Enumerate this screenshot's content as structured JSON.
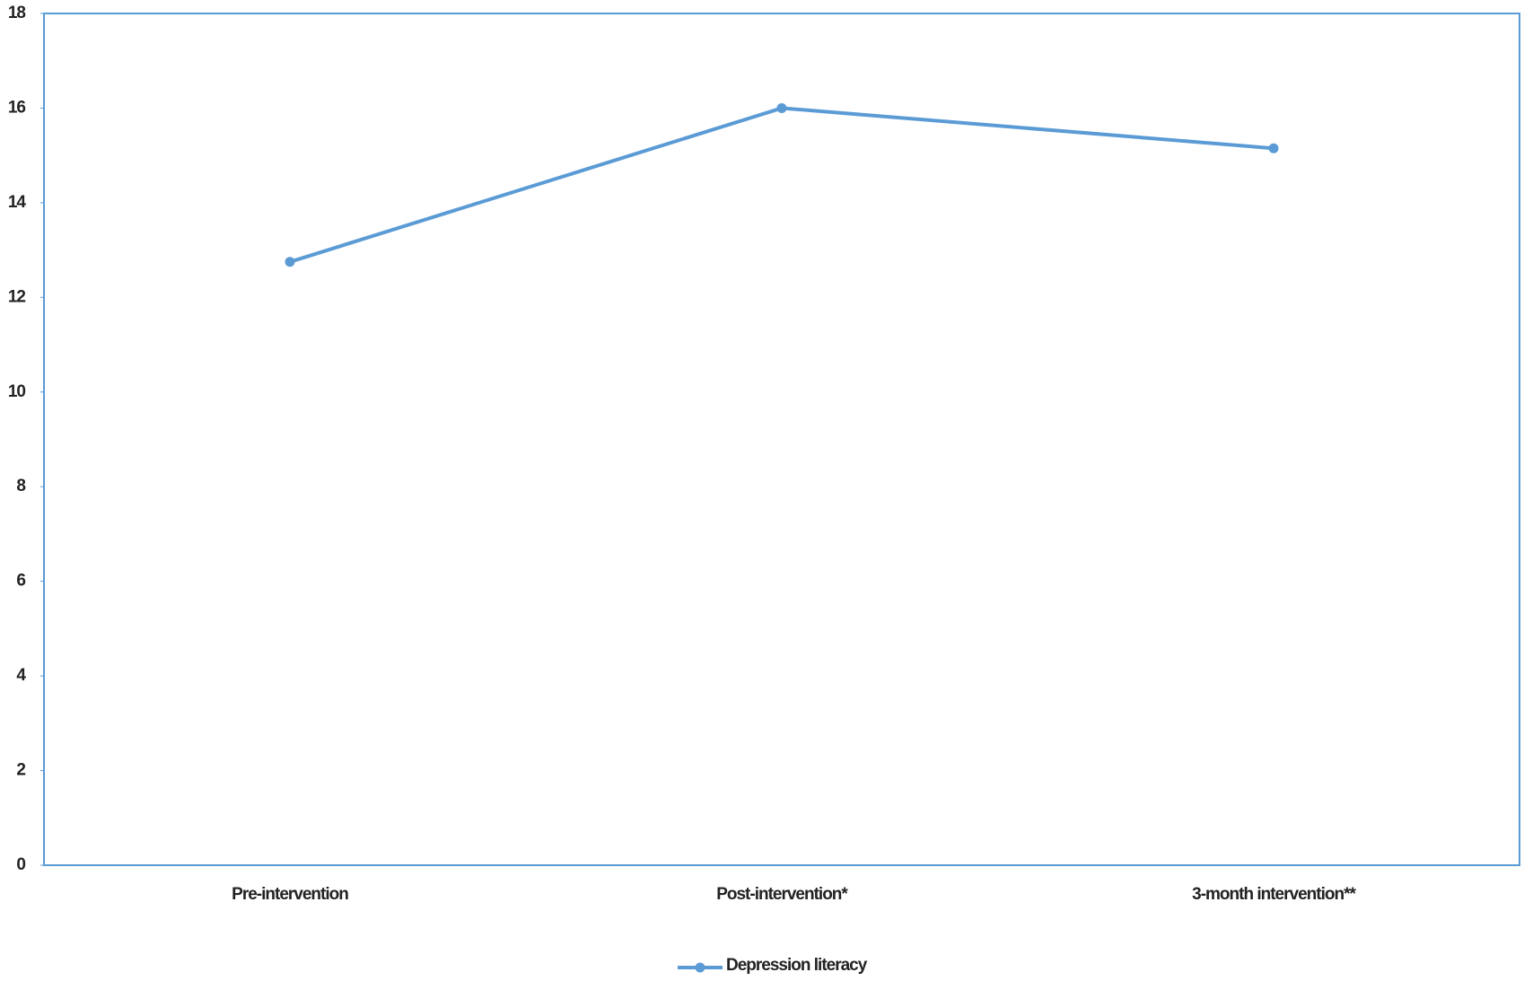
{
  "chart_data": {
    "type": "line",
    "categories": [
      "Pre-intervention",
      "Post-intervention*",
      "3-month intervention**"
    ],
    "series": [
      {
        "name": "Depression literacy",
        "color": "#5b9bd5",
        "values": [
          12.75,
          16.0,
          15.15
        ]
      }
    ],
    "ylim": [
      0,
      18
    ],
    "yticks": [
      0,
      2,
      4,
      6,
      8,
      10,
      12,
      14,
      16,
      18
    ],
    "grid": false,
    "legend": "bottom"
  }
}
